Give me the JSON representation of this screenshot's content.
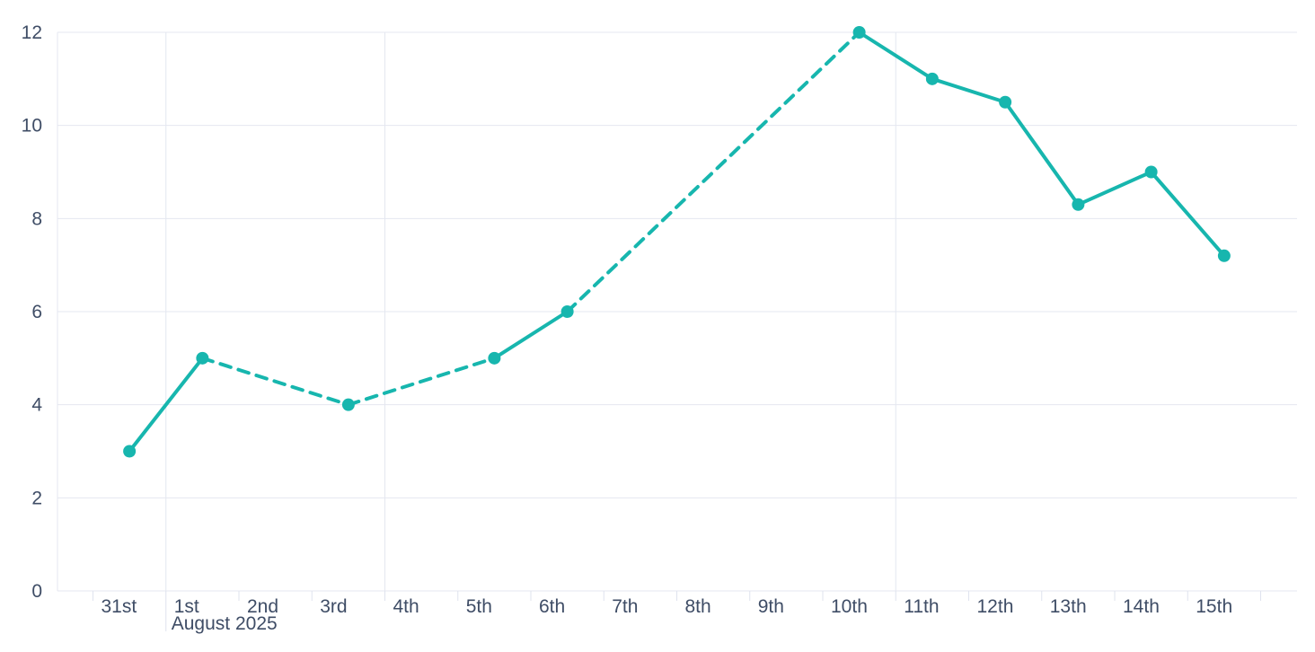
{
  "chart_data": {
    "type": "line",
    "title": "",
    "xlabel": "",
    "ylabel": "",
    "x": [
      "Jul 31",
      "Aug 1",
      "Aug 2",
      "Aug 3",
      "Aug 4",
      "Aug 5",
      "Aug 6",
      "Aug 7",
      "Aug 8",
      "Aug 9",
      "Aug 10",
      "Aug 11",
      "Aug 12",
      "Aug 13",
      "Aug 14",
      "Aug 15"
    ],
    "x_tick_labels": [
      "31st",
      "1st",
      "2nd",
      "3rd",
      "4th",
      "5th",
      "6th",
      "7th",
      "8th",
      "9th",
      "10th",
      "11th",
      "12th",
      "13th",
      "14th",
      "15th"
    ],
    "month_label": "August 2025",
    "series": [
      {
        "name": "series-1",
        "values": [
          3,
          5,
          null,
          4,
          null,
          5,
          6,
          null,
          null,
          null,
          12,
          11,
          10.5,
          8.3,
          9,
          7.2
        ],
        "note": "segments that bridge missing days are rendered dashed; adjacent-day segments are solid"
      }
    ],
    "dashed_bridges": [
      [
        "Aug 1",
        "Aug 3"
      ],
      [
        "Aug 3",
        "Aug 5"
      ],
      [
        "Aug 6",
        "Aug 10"
      ]
    ],
    "y_ticks": [
      0,
      2,
      4,
      6,
      8,
      10,
      12
    ],
    "ylim": [
      0,
      12
    ],
    "grid": "horizontal gridlines at every y tick; vertical gridlines at Aug 1, Aug 4 and Aug 11 day boundaries",
    "vertical_gridline_tick_indices": [
      1,
      4,
      11
    ],
    "legend": "none",
    "colors": {
      "line": "#17b6ae",
      "marker": "#17b6ae",
      "grid": "#e4e7f0",
      "axis_line": "#e4e7f0",
      "tick": "#dfe3ee",
      "label_text": "#3f4d66",
      "background": "#ffffff"
    }
  }
}
